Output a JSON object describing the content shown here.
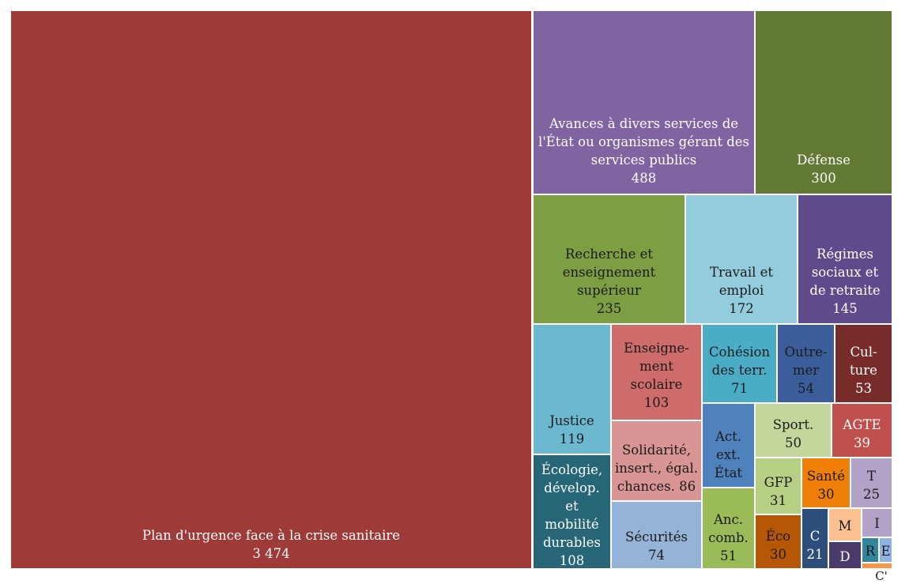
{
  "chart_data": {
    "type": "treemap",
    "title": "",
    "unit": "",
    "items": [
      {
        "id": "plan",
        "label": "Plan d'urgence face à la crise sanitaire",
        "lines": [
          "Plan d'urgence face à la crise sanitaire"
        ],
        "value_text": "3 474",
        "value": 3474,
        "color": "#9E3A38",
        "text_color": "#ffffff"
      },
      {
        "id": "avances",
        "label": "Avances à divers services de l'État ou organismes gérant des services publics",
        "lines": [
          "Avances à divers services de",
          "l'État ou organismes gérant des",
          "services publics"
        ],
        "value_text": "488",
        "value": 488,
        "color": "#8064A2",
        "text_color": "#ffffff"
      },
      {
        "id": "defense",
        "label": "Défense",
        "lines": [
          "Défense"
        ],
        "value_text": "300",
        "value": 300,
        "color": "#627A33",
        "text_color": "#ffffff"
      },
      {
        "id": "recherche",
        "label": "Recherche et enseignement supérieur",
        "lines": [
          "Recherche et",
          "enseignement",
          "supérieur"
        ],
        "value_text": "235",
        "value": 235,
        "color": "#7D9E43",
        "text_color": "#1a1a1a"
      },
      {
        "id": "travail",
        "label": "Travail et emploi",
        "lines": [
          "Travail et",
          "emploi"
        ],
        "value_text": "172",
        "value": 172,
        "color": "#93CDDD",
        "text_color": "#1a1a1a"
      },
      {
        "id": "regimes",
        "label": "Régimes sociaux et de retraite",
        "lines": [
          "Régimes",
          "sociaux et",
          "de retraite"
        ],
        "value_text": "145",
        "value": 145,
        "color": "#5F4B8B",
        "text_color": "#ffffff"
      },
      {
        "id": "justice",
        "label": "Justice",
        "lines": [
          "Justice"
        ],
        "value_text": "119",
        "value": 119,
        "color": "#6BB8CF",
        "text_color": "#1a1a1a"
      },
      {
        "id": "ens_scol",
        "label": "Enseignement scolaire",
        "lines": [
          "Enseigne-",
          "ment",
          "scolaire"
        ],
        "value_text": "103",
        "value": 103,
        "color": "#CD6C6A",
        "text_color": "#1a1a1a"
      },
      {
        "id": "ecologie",
        "label": "Écologie, dévelop. et mobilité durables",
        "lines": [
          "Écologie,",
          "dévelop.",
          "et",
          "mobilité",
          "durables"
        ],
        "value_text": "108",
        "value": 108,
        "color": "#276677",
        "text_color": "#ffffff"
      },
      {
        "id": "solidarite",
        "label": "Solidarité, insert., égal. chances.",
        "lines": [
          "Solidarité,",
          "insert., égal.",
          "chances. 86"
        ],
        "value_text": "",
        "value": 86,
        "color": "#D99593",
        "text_color": "#1a1a1a"
      },
      {
        "id": "securites",
        "label": "Sécurités",
        "lines": [
          "Sécurités"
        ],
        "value_text": "74",
        "value": 74,
        "color": "#95B3D7",
        "text_color": "#1a1a1a"
      },
      {
        "id": "cohesion",
        "label": "Cohésion des terr.",
        "lines": [
          "Cohésion",
          "des terr."
        ],
        "value_text": "71",
        "value": 71,
        "color": "#4BACC6",
        "text_color": "#1a1a1a"
      },
      {
        "id": "outremer",
        "label": "Outre-mer",
        "lines": [
          "Outre-",
          "mer"
        ],
        "value_text": "54",
        "value": 54,
        "color": "#3B5E9B",
        "text_color": "#1a1a1a"
      },
      {
        "id": "culture",
        "label": "Culture",
        "lines": [
          "Cul-",
          "ture"
        ],
        "value_text": "53",
        "value": 53,
        "color": "#772C2A",
        "text_color": "#ffffff"
      },
      {
        "id": "actext",
        "label": "Act. ext. État",
        "lines": [
          "Act.",
          "ext.",
          "État"
        ],
        "value_text": "",
        "value": 52,
        "color": "#4F81BD",
        "text_color": "#1a1a1a"
      },
      {
        "id": "sport",
        "label": "Sport.",
        "lines": [
          "Sport."
        ],
        "value_text": "50",
        "value": 50,
        "color": "#C3D69B",
        "text_color": "#1a1a1a"
      },
      {
        "id": "agte",
        "label": "AGTE",
        "lines": [
          "AGTE"
        ],
        "value_text": "39",
        "value": 39,
        "color": "#C0504D",
        "text_color": "#ffffff"
      },
      {
        "id": "anccomb",
        "label": "Anc. comb.",
        "lines": [
          "Anc.",
          "comb."
        ],
        "value_text": "51",
        "value": 51,
        "color": "#9BBB59",
        "text_color": "#1a1a1a"
      },
      {
        "id": "gfp",
        "label": "GFP",
        "lines": [
          "GFP"
        ],
        "value_text": "31",
        "value": 31,
        "color": "#B7CF85",
        "text_color": "#1a1a1a"
      },
      {
        "id": "sante",
        "label": "Santé",
        "lines": [
          "Santé"
        ],
        "value_text": "30",
        "value": 30,
        "color": "#F07F09",
        "text_color": "#1a1a1a"
      },
      {
        "id": "t",
        "label": "T",
        "lines": [
          "T"
        ],
        "value_text": "25",
        "value": 25,
        "color": "#B2A2C7",
        "text_color": "#1a1a1a"
      },
      {
        "id": "eco",
        "label": "Éco",
        "lines": [
          "Éco"
        ],
        "value_text": "30",
        "value": 30,
        "color": "#B65708",
        "text_color": "#1a1a1a"
      },
      {
        "id": "c",
        "label": "C",
        "lines": [
          "C"
        ],
        "value_text": "21",
        "value": 21,
        "color": "#2D4E7A",
        "text_color": "#ffffff"
      },
      {
        "id": "m",
        "label": "M",
        "lines": [
          "M"
        ],
        "value_text": "",
        "value": 13,
        "color": "#FAC090",
        "text_color": "#1a1a1a"
      },
      {
        "id": "i",
        "label": "I",
        "lines": [
          "I"
        ],
        "value_text": "",
        "value": 9,
        "color": "#B2A2C7",
        "text_color": "#1a1a1a"
      },
      {
        "id": "d",
        "label": "D",
        "lines": [
          "D"
        ],
        "value_text": "",
        "value": 11,
        "color": "#4A3A6A",
        "text_color": "#ffffff"
      },
      {
        "id": "r",
        "label": "R",
        "lines": [
          "R"
        ],
        "value_text": "",
        "value": 5,
        "color": "#31859C",
        "text_color": "#1a1a1a"
      },
      {
        "id": "e",
        "label": "E",
        "lines": [
          "E"
        ],
        "value_text": "",
        "value": 4,
        "color": "#8EB4E3",
        "text_color": "#1a1a1a"
      },
      {
        "id": "cprime",
        "label": "C'",
        "lines": [],
        "value_text": "",
        "value": 2,
        "color": "#F79646",
        "text_color": "#1a1a1a"
      }
    ],
    "outside_labels": [
      {
        "for": "cprime",
        "text": "C'"
      }
    ]
  }
}
